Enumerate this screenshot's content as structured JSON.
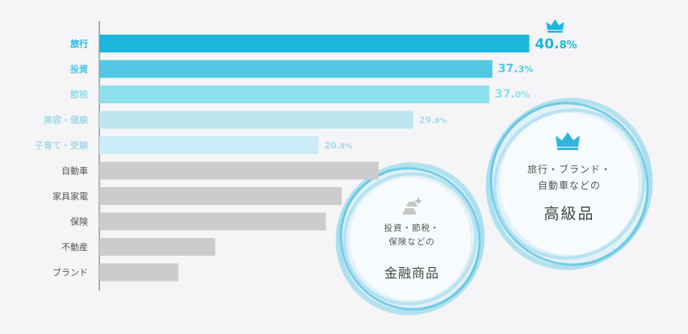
{
  "chart_data": {
    "type": "bar",
    "orientation": "horizontal",
    "categories": [
      "旅行",
      "投資",
      "節税",
      "美容・健康",
      "子育て・受験",
      "自動車",
      "家具家電",
      "保険",
      "不動産",
      "ブランド"
    ],
    "values": [
      40.8,
      37.3,
      37.0,
      29.8,
      20.8,
      26.5,
      23.0,
      21.5,
      11.0,
      7.5
    ],
    "labels": [
      {
        "main": "40.",
        "dec": "8%"
      },
      {
        "main": "37.",
        "dec": "3%"
      },
      {
        "main": "37.",
        "dec": "0%"
      },
      {
        "main": "29.",
        "dec": "8%"
      },
      {
        "main": "20.",
        "dec": "8%"
      },
      null,
      null,
      null,
      null,
      null
    ],
    "bar_colors": [
      "#1ab8dc",
      "#52c8e3",
      "#8de0ec",
      "#bfe6ee",
      "#c9ecf8",
      "#cccccc",
      "#cccccc",
      "#cccccc",
      "#cccccc",
      "#cccccc"
    ],
    "label_colors": [
      "#1ab8dc",
      "#52c8e3",
      "#8de0ec",
      "#a9dbe6",
      "#a9dbe6",
      "#555555",
      "#555555",
      "#555555",
      "#555555",
      "#555555"
    ],
    "xlim": [
      0,
      45
    ],
    "highlight_icon": "crown-icon"
  },
  "bubbles": {
    "luxury": {
      "line1": "旅行・ブランド・",
      "line2": "自動車などの",
      "title": "高級品",
      "icon": "crown-icon"
    },
    "financial": {
      "line1": "投資・節税・",
      "line2": "保険などの",
      "title": "金融商品",
      "icon": "gold-bars-icon"
    }
  },
  "colors": {
    "accent": "#1ab8dc",
    "bubble_ring": "#6fc8e6",
    "background": "#f5f5f7"
  }
}
